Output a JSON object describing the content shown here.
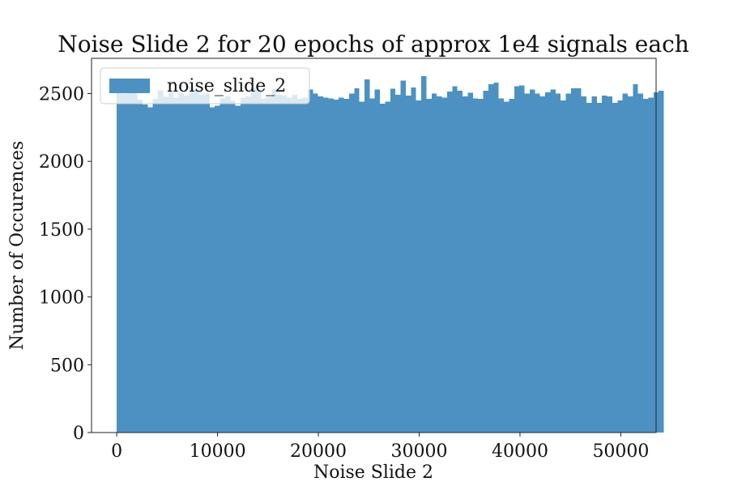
{
  "chart_data": {
    "type": "bar",
    "title": "Noise Slide 2 for 20 epochs of approx 1e4 signals each",
    "xlabel": "Noise Slide 2",
    "ylabel": "Number of Occurences",
    "xlim": [
      -2500,
      53500
    ],
    "ylim": [
      0,
      2760
    ],
    "x_ticks": [
      0,
      10000,
      20000,
      30000,
      40000,
      50000
    ],
    "y_ticks": [
      0,
      500,
      1000,
      1500,
      2000,
      2500
    ],
    "x_tick_labels": [
      "0",
      "10000",
      "20000",
      "30000",
      "40000",
      "50000"
    ],
    "y_tick_labels": [
      "0",
      "500",
      "1000",
      "1500",
      "2000",
      "2500"
    ],
    "grid": false,
    "legend_position": "upper-left",
    "bar_color": "#4c91c2",
    "bin_start": 0,
    "bin_width": 512,
    "series": [
      {
        "name": "noise_slide_2",
        "values": [
          2540,
          2500,
          2555,
          2530,
          2455,
          2420,
          2400,
          2460,
          2525,
          2475,
          2515,
          2470,
          2505,
          2485,
          2550,
          2530,
          2490,
          2500,
          2400,
          2410,
          2465,
          2480,
          2445,
          2410,
          2470,
          2480,
          2545,
          2530,
          2460,
          2475,
          2535,
          2490,
          2485,
          2470,
          2490,
          2460,
          2470,
          2530,
          2500,
          2480,
          2470,
          2465,
          2455,
          2470,
          2460,
          2500,
          2540,
          2440,
          2605,
          2465,
          2530,
          2425,
          2440,
          2535,
          2490,
          2595,
          2485,
          2545,
          2450,
          2630,
          2460,
          2500,
          2480,
          2470,
          2515,
          2555,
          2520,
          2480,
          2505,
          2465,
          2460,
          2520,
          2570,
          2580,
          2465,
          2440,
          2460,
          2555,
          2560,
          2500,
          2530,
          2500,
          2480,
          2510,
          2530,
          2500,
          2450,
          2500,
          2540,
          2540,
          2480,
          2430,
          2480,
          2430,
          2485,
          2480,
          2430,
          2450,
          2500,
          2480,
          2570,
          2500,
          2460,
          2470,
          2510,
          2520
        ]
      }
    ]
  }
}
